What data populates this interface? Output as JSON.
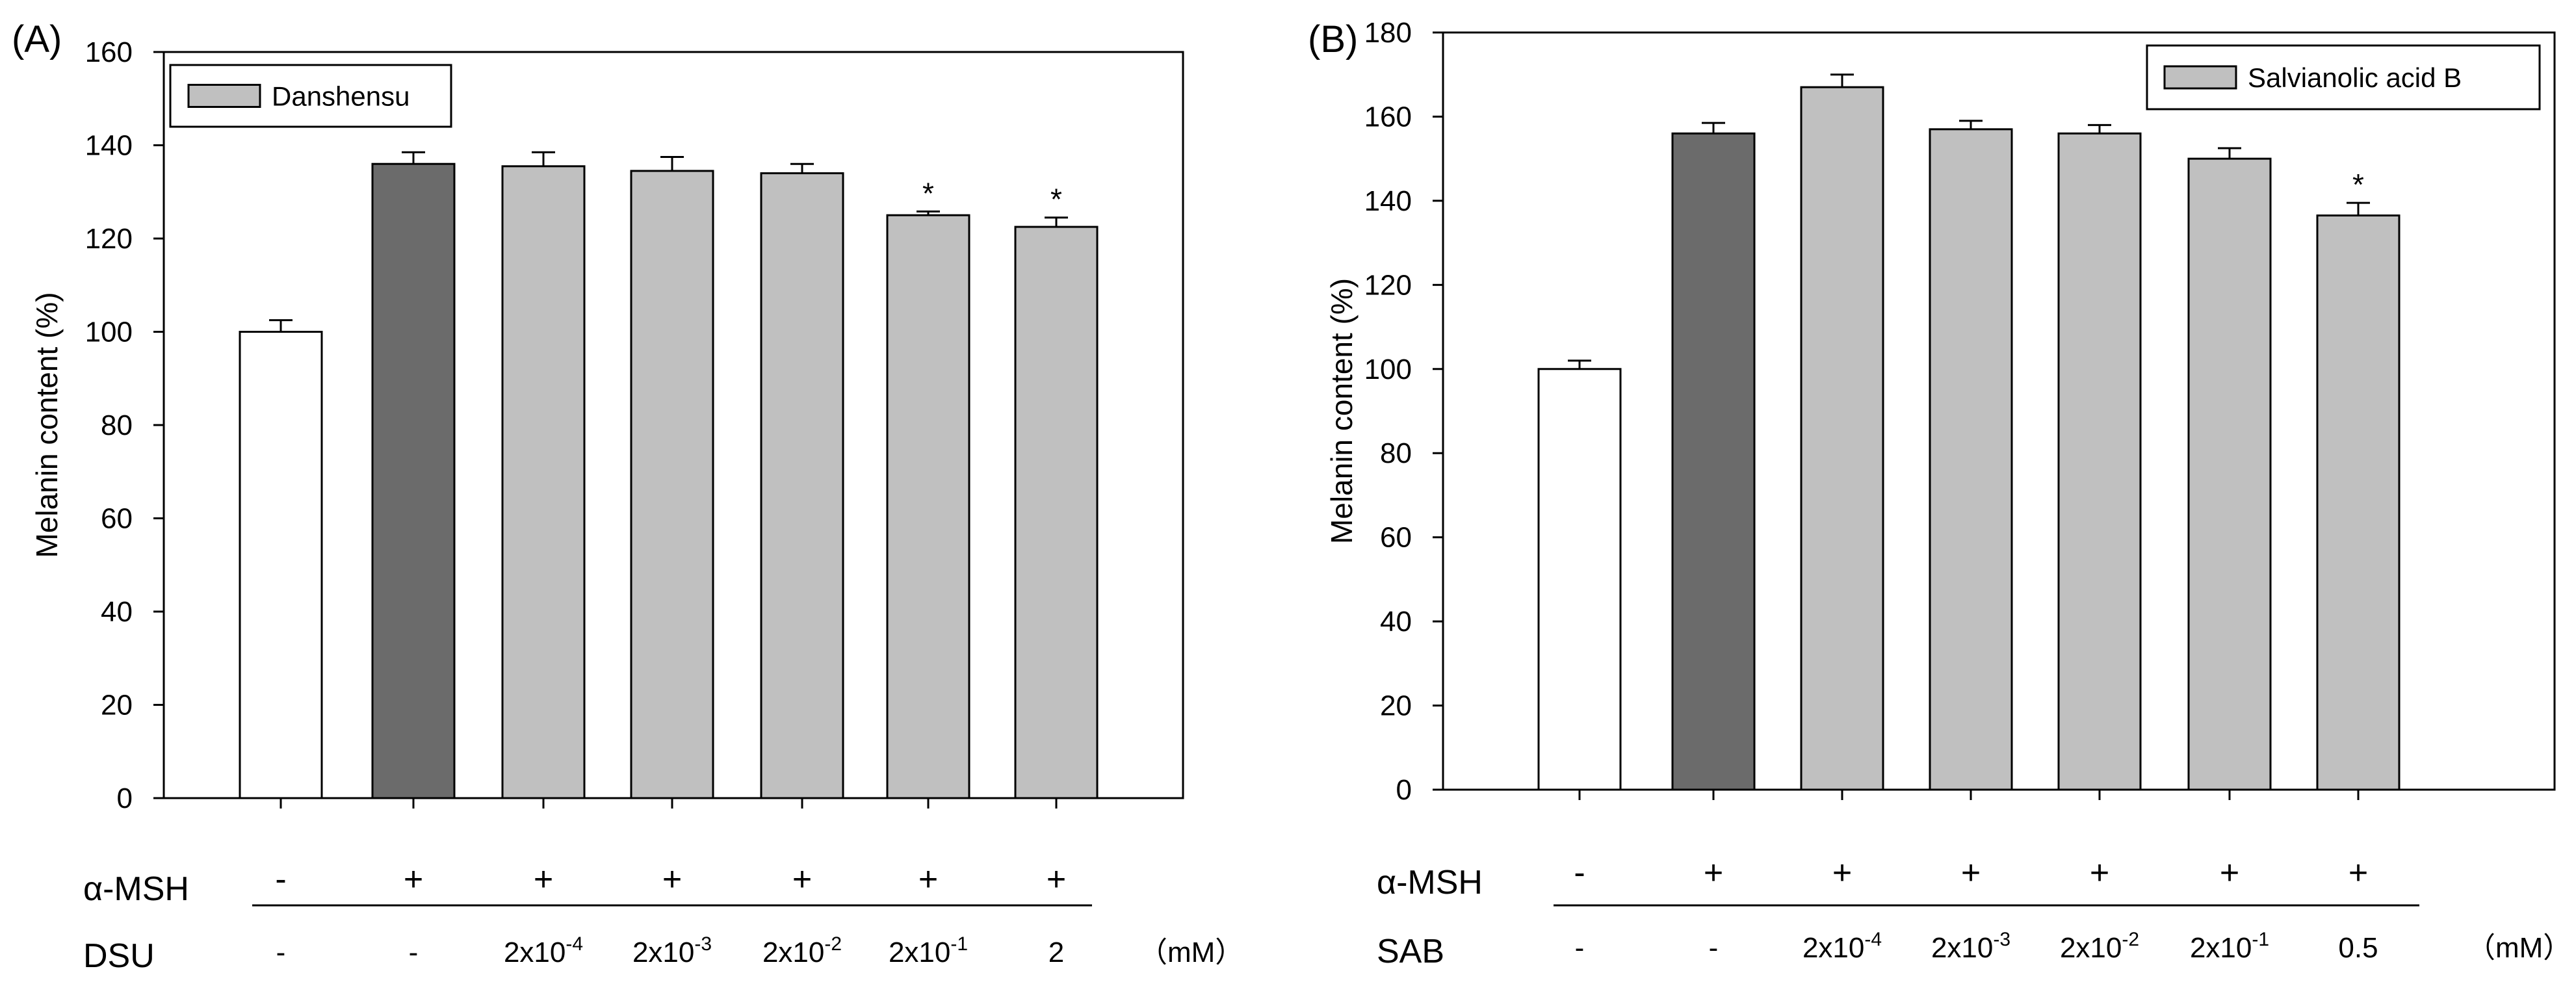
{
  "colors": {
    "control": "#ffffff",
    "msh": "#6b6b6b",
    "treatment": "#c0c0c0",
    "stroke": "#000000"
  },
  "chart_data": [
    {
      "type": "bar",
      "panel_label": "(A)",
      "ylabel": "Melanin content (%)",
      "xlabel": "",
      "ylim": [
        0,
        160
      ],
      "yticks": [
        0,
        20,
        40,
        60,
        80,
        100,
        120,
        140,
        160
      ],
      "legend": {
        "label": "Danshensu",
        "position": "top-left"
      },
      "values": [
        100,
        136,
        135.5,
        134.5,
        134,
        125,
        122.5
      ],
      "errors": [
        2.5,
        2.5,
        3,
        3,
        2,
        0.8,
        2
      ],
      "bar_kind": [
        "control",
        "msh",
        "treatment",
        "treatment",
        "treatment",
        "treatment",
        "treatment"
      ],
      "significance": [
        "",
        "",
        "",
        "",
        "",
        "*",
        "*"
      ],
      "row1": {
        "label": "α-MSH",
        "values": [
          "-",
          "+",
          "+",
          "+",
          "+",
          "+",
          "+"
        ]
      },
      "row2": {
        "label": "DSU",
        "values": [
          {
            "base": "-",
            "exp": ""
          },
          {
            "base": "-",
            "exp": ""
          },
          {
            "base": "2x10",
            "exp": "-4"
          },
          {
            "base": "2x10",
            "exp": "-3"
          },
          {
            "base": "2x10",
            "exp": "-2"
          },
          {
            "base": "2x10",
            "exp": "-1"
          },
          {
            "base": "2",
            "exp": ""
          }
        ]
      },
      "unit": "（mM）"
    },
    {
      "type": "bar",
      "panel_label": "(B)",
      "ylabel": "Melanin content (%)",
      "xlabel": "",
      "ylim": [
        0,
        180
      ],
      "yticks": [
        0,
        20,
        40,
        60,
        80,
        100,
        120,
        140,
        160,
        180
      ],
      "legend": {
        "label": "Salvianolic acid B",
        "position": "top-right"
      },
      "values": [
        100,
        156,
        167,
        157,
        156,
        150,
        136.5
      ],
      "errors": [
        2,
        2.5,
        3,
        2,
        2,
        2.5,
        3
      ],
      "bar_kind": [
        "control",
        "msh",
        "treatment",
        "treatment",
        "treatment",
        "treatment",
        "treatment"
      ],
      "significance": [
        "",
        "",
        "",
        "",
        "",
        "",
        "*"
      ],
      "row1": {
        "label": "α-MSH",
        "values": [
          "-",
          "+",
          "+",
          "+",
          "+",
          "+",
          "+"
        ]
      },
      "row2": {
        "label": "SAB",
        "values": [
          {
            "base": "-",
            "exp": ""
          },
          {
            "base": "-",
            "exp": ""
          },
          {
            "base": "2x10",
            "exp": "-4"
          },
          {
            "base": "2x10",
            "exp": "-3"
          },
          {
            "base": "2x10",
            "exp": "-2"
          },
          {
            "base": "2x10",
            "exp": "-1"
          },
          {
            "base": "0.5",
            "exp": ""
          }
        ]
      },
      "unit": "（mM）"
    }
  ]
}
